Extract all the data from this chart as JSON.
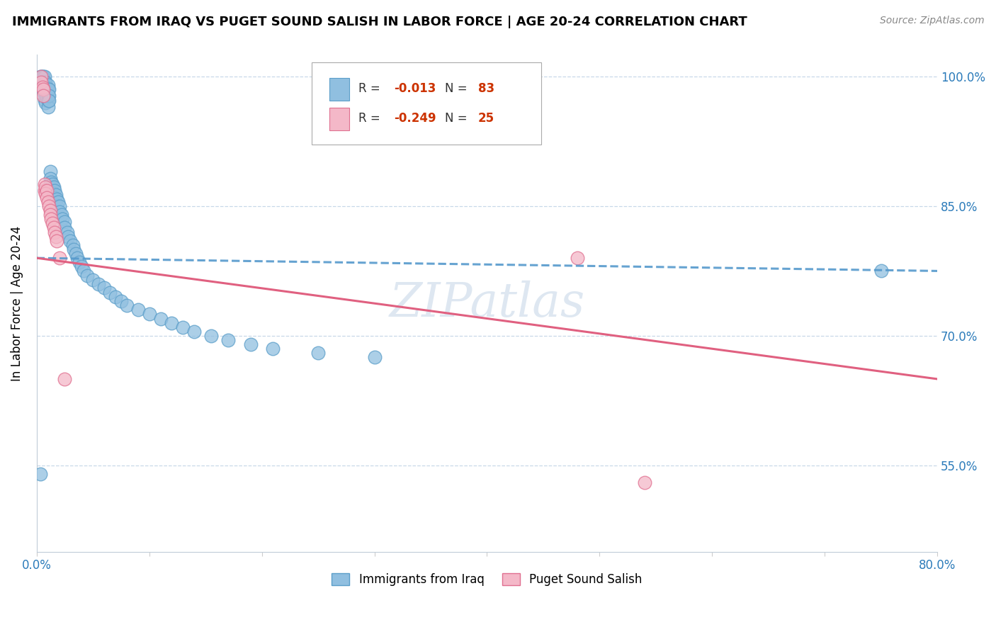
{
  "title": "IMMIGRANTS FROM IRAQ VS PUGET SOUND SALISH IN LABOR FORCE | AGE 20-24 CORRELATION CHART",
  "source": "Source: ZipAtlas.com",
  "ylabel": "In Labor Force | Age 20-24",
  "x_min": 0.0,
  "x_max": 0.8,
  "y_min": 0.45,
  "y_max": 1.025,
  "x_ticks": [
    0.0,
    0.1,
    0.2,
    0.3,
    0.4,
    0.5,
    0.6,
    0.7,
    0.8
  ],
  "x_tick_labels": [
    "0.0%",
    "",
    "",
    "",
    "",
    "",
    "",
    "",
    "80.0%"
  ],
  "y_ticks": [
    0.55,
    0.7,
    0.85,
    1.0
  ],
  "y_tick_labels": [
    "55.0%",
    "70.0%",
    "85.0%",
    "100.0%"
  ],
  "blue_color": "#90bfe0",
  "blue_edge": "#5b9ec9",
  "pink_color": "#f4b8c8",
  "pink_edge": "#e07090",
  "trend_blue_color": "#5599cc",
  "trend_pink_color": "#e06080",
  "watermark": "ZIPatlas",
  "blue_trend_start_y": 0.79,
  "blue_trend_end_y": 0.775,
  "pink_trend_start_y": 0.79,
  "pink_trend_end_y": 0.65,
  "blue_points_x": [
    0.003,
    0.004,
    0.005,
    0.005,
    0.005,
    0.006,
    0.006,
    0.006,
    0.006,
    0.007,
    0.007,
    0.007,
    0.007,
    0.007,
    0.008,
    0.008,
    0.008,
    0.008,
    0.008,
    0.009,
    0.009,
    0.009,
    0.01,
    0.01,
    0.01,
    0.01,
    0.01,
    0.011,
    0.011,
    0.011,
    0.012,
    0.012,
    0.012,
    0.013,
    0.013,
    0.014,
    0.014,
    0.015,
    0.015,
    0.016,
    0.016,
    0.017,
    0.018,
    0.018,
    0.019,
    0.02,
    0.02,
    0.022,
    0.023,
    0.025,
    0.025,
    0.027,
    0.028,
    0.03,
    0.032,
    0.033,
    0.035,
    0.036,
    0.038,
    0.04,
    0.042,
    0.045,
    0.05,
    0.055,
    0.06,
    0.065,
    0.07,
    0.075,
    0.08,
    0.09,
    0.1,
    0.11,
    0.12,
    0.13,
    0.14,
    0.155,
    0.17,
    0.19,
    0.21,
    0.25,
    0.3,
    0.75,
    0.003
  ],
  "blue_points_y": [
    1.0,
    1.0,
    1.0,
    0.993,
    0.987,
    1.0,
    0.993,
    0.988,
    0.982,
    1.0,
    0.993,
    0.988,
    0.98,
    0.973,
    0.993,
    0.988,
    0.982,
    0.976,
    0.97,
    0.988,
    0.982,
    0.976,
    0.99,
    0.985,
    0.978,
    0.972,
    0.965,
    0.985,
    0.978,
    0.972,
    0.89,
    0.882,
    0.875,
    0.878,
    0.871,
    0.875,
    0.868,
    0.872,
    0.865,
    0.868,
    0.86,
    0.863,
    0.858,
    0.85,
    0.855,
    0.85,
    0.843,
    0.84,
    0.835,
    0.832,
    0.825,
    0.82,
    0.815,
    0.81,
    0.805,
    0.8,
    0.795,
    0.79,
    0.785,
    0.78,
    0.775,
    0.77,
    0.765,
    0.76,
    0.756,
    0.75,
    0.745,
    0.74,
    0.735,
    0.73,
    0.725,
    0.72,
    0.715,
    0.71,
    0.705,
    0.7,
    0.695,
    0.69,
    0.685,
    0.68,
    0.675,
    0.775,
    0.54
  ],
  "pink_points_x": [
    0.004,
    0.004,
    0.005,
    0.006,
    0.006,
    0.007,
    0.007,
    0.008,
    0.008,
    0.009,
    0.009,
    0.01,
    0.011,
    0.012,
    0.012,
    0.013,
    0.014,
    0.015,
    0.016,
    0.017,
    0.018,
    0.02,
    0.025,
    0.48,
    0.54
  ],
  "pink_points_y": [
    1.0,
    0.993,
    0.988,
    0.985,
    0.978,
    0.875,
    0.868,
    0.872,
    0.865,
    0.868,
    0.86,
    0.855,
    0.85,
    0.845,
    0.84,
    0.835,
    0.83,
    0.825,
    0.82,
    0.815,
    0.81,
    0.79,
    0.65,
    0.79,
    0.53
  ]
}
